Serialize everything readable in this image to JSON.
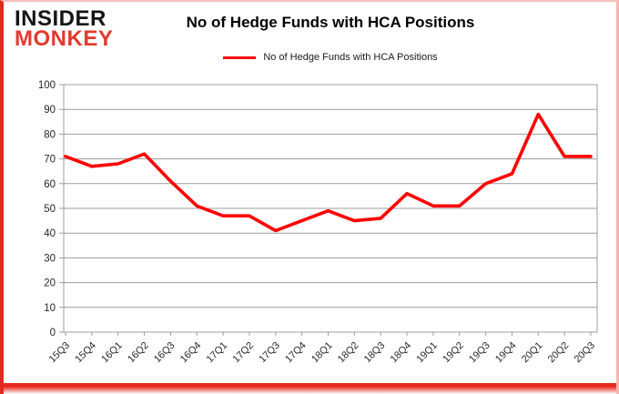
{
  "logo": {
    "line1": "INSIDER",
    "line2": "MONKEY"
  },
  "title": "No of Hedge Funds with HCA Positions",
  "legend": {
    "label": "No of Hedge Funds with HCA Positions",
    "marker_color": "#ff0000"
  },
  "colors": {
    "series_line": "#ff0000",
    "gridline": "#9c9c9c",
    "axis_text": "#262626",
    "logo_text": "#151515",
    "logo_accent": "#e13a2c",
    "frame_left": "#e02b20",
    "frame_pink": "#f5b5b0",
    "background": "#ffffff"
  },
  "chart_data": {
    "type": "line",
    "title": "No of Hedge Funds with HCA Positions",
    "categories": [
      "15Q3",
      "15Q4",
      "16Q1",
      "16Q2",
      "16Q3",
      "16Q4",
      "17Q1",
      "17Q2",
      "17Q3",
      "17Q4",
      "18Q1",
      "18Q2",
      "18Q3",
      "18Q4",
      "19Q1",
      "19Q2",
      "19Q3",
      "19Q4",
      "20Q1",
      "20Q2",
      "20Q3"
    ],
    "series": [
      {
        "name": "No of Hedge Funds with HCA Positions",
        "color": "#ff0000",
        "values": [
          71,
          67,
          68,
          72,
          61,
          51,
          47,
          47,
          41,
          45,
          49,
          45,
          46,
          56,
          51,
          51,
          60,
          64,
          88,
          71,
          71
        ]
      }
    ],
    "ylim": [
      0,
      100
    ],
    "ytick_step": 10,
    "grid": "horizontal-only",
    "legend_position": "top-center",
    "xlabel": "",
    "ylabel": ""
  }
}
